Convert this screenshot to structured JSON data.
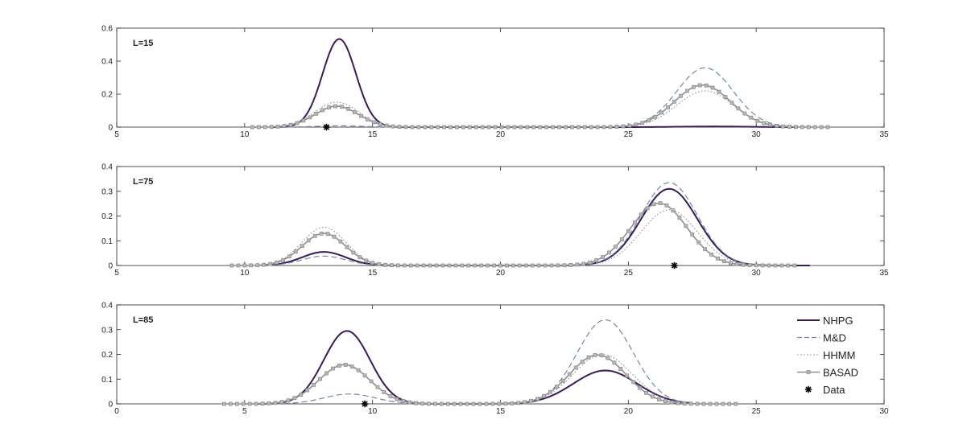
{
  "legend": {
    "placement": "inside bottom-right of panel 3",
    "entries": [
      {
        "series": "NHPG",
        "label": "NHPG",
        "color": "#3b1a5a",
        "style": "solid"
      },
      {
        "series": "M&D",
        "label": "M&D",
        "color": "#6f8aa6",
        "style": "dashed"
      },
      {
        "series": "HHMM",
        "label": "HHMM",
        "color": "#8e8e8e",
        "style": "dotted"
      },
      {
        "series": "BASAD",
        "label": "BASAD",
        "color": "#8e8e8e",
        "style": "solid-square-markers"
      },
      {
        "series": "Data",
        "label": "Data",
        "color": "#000000",
        "style": "asterisk"
      }
    ]
  },
  "chart_data": [
    {
      "type": "line",
      "title": "",
      "panel_label": "L=15",
      "xlabel": "",
      "ylabel": "",
      "xlim": [
        5,
        35
      ],
      "ylim": [
        0,
        0.6
      ],
      "grid": false,
      "xticks": [
        "5",
        "10",
        "15",
        "20",
        "25",
        "30",
        "35"
      ],
      "xtick_values": [
        5,
        10,
        15,
        20,
        25,
        30,
        35
      ],
      "yticks": [
        "0",
        "0.2",
        "0.4",
        "0.6"
      ],
      "ytick_values": [
        0,
        0.2,
        0.4,
        0.6
      ],
      "series": [
        {
          "name": "NHPG",
          "x_range": [
            11,
            31.5
          ],
          "peaks": [
            {
              "mu": 13.7,
              "sigma": 0.65,
              "amp": 0.535
            },
            {
              "mu": 28.3,
              "sigma": 1.3,
              "amp": 0.004
            }
          ]
        },
        {
          "name": "M&D",
          "x_range": [
            11,
            31.5
          ],
          "peaks": [
            {
              "mu": 13.7,
              "sigma": 0.9,
              "amp": 0.008
            },
            {
              "mu": 28.0,
              "sigma": 1.1,
              "amp": 0.36
            }
          ]
        },
        {
          "name": "HHMM",
          "x_range": [
            10.3,
            31.5
          ],
          "peaks": [
            {
              "mu": 13.6,
              "sigma": 0.85,
              "amp": 0.152
            },
            {
              "mu": 28.0,
              "sigma": 1.1,
              "amp": 0.22
            }
          ]
        },
        {
          "name": "BASAD",
          "x_range": [
            10.3,
            33
          ],
          "peaks": [
            {
              "mu": 13.6,
              "sigma": 0.85,
              "amp": 0.127
            },
            {
              "mu": 27.9,
              "sigma": 1.1,
              "amp": 0.255
            }
          ]
        },
        {
          "name": "Data",
          "points": [
            [
              13.2,
              0.0
            ]
          ]
        }
      ]
    },
    {
      "type": "line",
      "title": "",
      "panel_label": "L=75",
      "xlabel": "",
      "ylabel": "",
      "xlim": [
        5,
        35
      ],
      "ylim": [
        0,
        0.4
      ],
      "grid": false,
      "xticks": [
        "5",
        "10",
        "15",
        "20",
        "25",
        "30",
        "35"
      ],
      "xtick_values": [
        5,
        10,
        15,
        20,
        25,
        30,
        35
      ],
      "yticks": [
        "0",
        "0.1",
        "0.2",
        "0.3",
        "0.4"
      ],
      "ytick_values": [
        0,
        0.1,
        0.2,
        0.3,
        0.4
      ],
      "series": [
        {
          "name": "NHPG",
          "x_range": [
            11,
            32.1
          ],
          "peaks": [
            {
              "mu": 13.1,
              "sigma": 0.85,
              "amp": 0.055
            },
            {
              "mu": 26.6,
              "sigma": 1.1,
              "amp": 0.31
            }
          ]
        },
        {
          "name": "M&D",
          "x_range": [
            11,
            31.5
          ],
          "peaks": [
            {
              "mu": 13.1,
              "sigma": 0.85,
              "amp": 0.038
            },
            {
              "mu": 26.6,
              "sigma": 1.1,
              "amp": 0.335
            }
          ]
        },
        {
          "name": "HHMM",
          "x_range": [
            10,
            31.5
          ],
          "peaks": [
            {
              "mu": 13.1,
              "sigma": 0.85,
              "amp": 0.155
            },
            {
              "mu": 26.6,
              "sigma": 1.1,
              "amp": 0.225
            }
          ]
        },
        {
          "name": "BASAD",
          "x_range": [
            9.5,
            31.5
          ],
          "peaks": [
            {
              "mu": 13.1,
              "sigma": 0.85,
              "amp": 0.13
            },
            {
              "mu": 26.2,
              "sigma": 1.1,
              "amp": 0.252
            }
          ]
        },
        {
          "name": "Data",
          "points": [
            [
              26.8,
              0.0
            ]
          ]
        }
      ]
    },
    {
      "type": "line",
      "title": "",
      "panel_label": "L=85",
      "xlabel": "",
      "ylabel": "",
      "xlim": [
        0,
        30
      ],
      "ylim": [
        0,
        0.4
      ],
      "grid": false,
      "xticks": [
        "0",
        "5",
        "10",
        "15",
        "20",
        "25",
        "30"
      ],
      "xtick_values": [
        0,
        5,
        10,
        15,
        20,
        25,
        30
      ],
      "yticks": [
        "0",
        "0.1",
        "0.2",
        "0.3",
        "0.4"
      ],
      "ytick_values": [
        0,
        0.1,
        0.2,
        0.3,
        0.4
      ],
      "series": [
        {
          "name": "NHPG",
          "x_range": [
            5.5,
            22.5
          ],
          "peaks": [
            {
              "mu": 9.0,
              "sigma": 0.9,
              "amp": 0.295
            },
            {
              "mu": 19.1,
              "sigma": 1.25,
              "amp": 0.135
            }
          ]
        },
        {
          "name": "M&D",
          "x_range": [
            5.5,
            22.5
          ],
          "peaks": [
            {
              "mu": 9.1,
              "sigma": 1.0,
              "amp": 0.04
            },
            {
              "mu": 19.1,
              "sigma": 1.1,
              "amp": 0.34
            }
          ]
        },
        {
          "name": "HHMM",
          "x_range": [
            4.5,
            23
          ],
          "peaks": [
            {
              "mu": 8.9,
              "sigma": 1.0,
              "amp": 0.16
            },
            {
              "mu": 19.0,
              "sigma": 1.15,
              "amp": 0.2
            }
          ]
        },
        {
          "name": "BASAD",
          "x_range": [
            4.2,
            24.2
          ],
          "peaks": [
            {
              "mu": 8.9,
              "sigma": 1.0,
              "amp": 0.158
            },
            {
              "mu": 18.8,
              "sigma": 1.1,
              "amp": 0.198
            }
          ]
        },
        {
          "name": "Data",
          "points": [
            [
              9.7,
              0.0
            ]
          ]
        }
      ]
    }
  ]
}
